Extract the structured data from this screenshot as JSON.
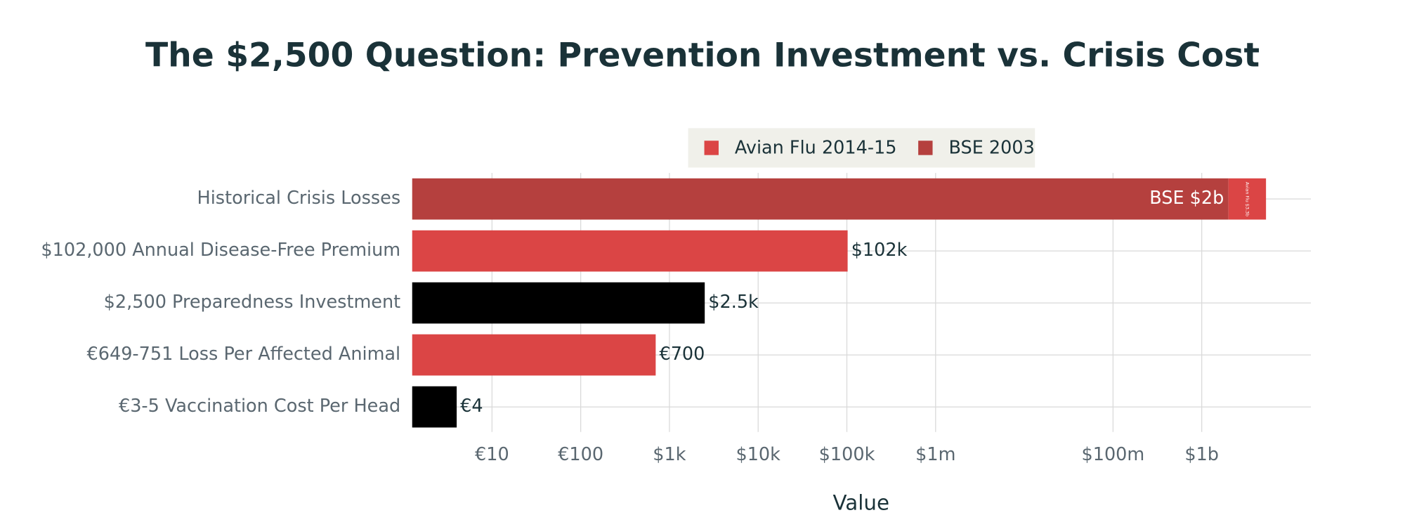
{
  "chart_data": {
    "type": "bar",
    "orientation": "horizontal",
    "stacked": true,
    "title": "The $2,500 Question: Prevention Investment vs. Crisis Cost",
    "x_label": "Value",
    "categories": [
      "Historical Crisis Losses",
      "$102,000 Annual Disease-Free Premium",
      "$2,500 Preparedness Investment",
      "€649-751 Loss Per Affected Animal",
      "€3-5 Vaccination Cost Per Head"
    ],
    "series": [
      {
        "name": "BSE 2003",
        "color": "#b5403e",
        "values": [
          2000000000,
          null,
          null,
          null,
          null
        ],
        "value_labels": [
          "BSE $2b",
          null,
          null,
          null,
          null
        ]
      },
      {
        "name": "Avian Flu 2014-15",
        "color": "#db4545",
        "values": [
          3300000000,
          null,
          null,
          null,
          null
        ],
        "value_labels": [
          "Avian Flu $3.3b",
          null,
          null,
          null,
          null
        ]
      },
      {
        "color": "#db4545",
        "values": [
          null,
          102000,
          null,
          700,
          null
        ],
        "value_labels": [
          null,
          "$102k",
          null,
          "€700",
          null
        ]
      },
      {
        "color": "#000000",
        "values": [
          null,
          null,
          2500,
          null,
          4
        ],
        "value_labels": [
          null,
          null,
          "$2.5k",
          null,
          "€4"
        ]
      }
    ],
    "log_x": true,
    "xlim": [
      1.26,
      17000000000
    ],
    "xticks": [
      {
        "value": 10,
        "label": "€10"
      },
      {
        "value": 100,
        "label": "€100"
      },
      {
        "value": 1000,
        "label": "$1k"
      },
      {
        "value": 10000,
        "label": "$10k"
      },
      {
        "value": 100000,
        "label": "$100k"
      },
      {
        "value": 1000000,
        "label": "$1m"
      },
      {
        "value": 100000000,
        "label": "$100m"
      },
      {
        "value": 1000000000,
        "label": "$1b"
      }
    ],
    "grid": true
  }
}
